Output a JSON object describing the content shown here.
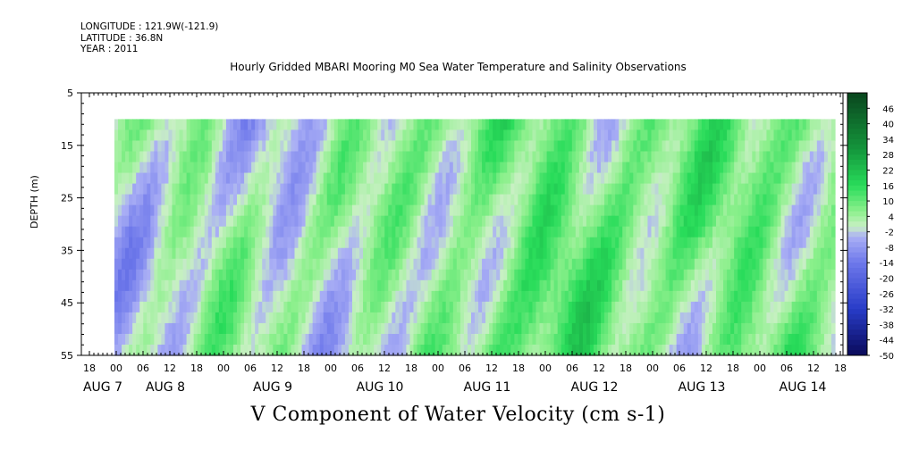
{
  "header": {
    "longitude": "LONGITUDE : 121.9W(-121.9)",
    "latitude": "LATITUDE : 36.8N",
    "year": "YEAR : 2011"
  },
  "title": "Hourly Gridded MBARI Mooring M0 Sea Water Temperature and Salinity Observations",
  "footer_title": "V Component of Water Velocity (cm s-1)",
  "chart_data": {
    "type": "heatmap",
    "title": "Hourly Gridded MBARI Mooring M0 Sea Water Temperature and Salinity Observations",
    "xlabel": "",
    "ylabel": "DEPTH (m)",
    "y_ticks": [
      5,
      15,
      25,
      35,
      45,
      55
    ],
    "ylim": [
      55,
      5
    ],
    "data_depth_range": [
      10,
      55
    ],
    "x_hour_ticks": [
      "18",
      "00",
      "06",
      "12",
      "18",
      "00",
      "06",
      "12",
      "18",
      "00",
      "06",
      "12",
      "18",
      "00",
      "06",
      "12",
      "18",
      "00",
      "06",
      "12",
      "18",
      "00",
      "06",
      "12",
      "18",
      "00",
      "06",
      "12",
      "18",
      "00",
      "06",
      "12"
    ],
    "x_day_labels": [
      "AUG 7",
      "AUG 8",
      "AUG 9",
      "AUG 10",
      "AUG 11",
      "AUG 12",
      "AUG 13",
      "AUG 14"
    ],
    "colorbar": {
      "labels": [
        "46",
        "40",
        "34",
        "28",
        "22",
        "16",
        "10",
        "4",
        "-2",
        "-8",
        "-14",
        "-20",
        "-26",
        "-32",
        "-38",
        "-44",
        "-50"
      ],
      "range": [
        -50,
        52
      ],
      "colors": {
        "neg_strong": "#1a1a8a",
        "neg_mid": "#4a5ad8",
        "neg_weak": "#a8acf0",
        "zero": "#c8f0c0",
        "pos_weak": "#8ff08f",
        "pos_mid": "#22dd55",
        "pos_strong": "#0f6a2a"
      }
    },
    "time_profile_description_values": {
      "days": [
        "AUG 7",
        "AUG 8",
        "AUG 9",
        "AUG 10",
        "AUG 11",
        "AUG 12",
        "AUG 13",
        "AUG 14"
      ],
      "approx_mean_v_cm_s": [
        -1,
        2,
        0,
        1,
        8,
        9,
        6,
        7
      ]
    }
  }
}
